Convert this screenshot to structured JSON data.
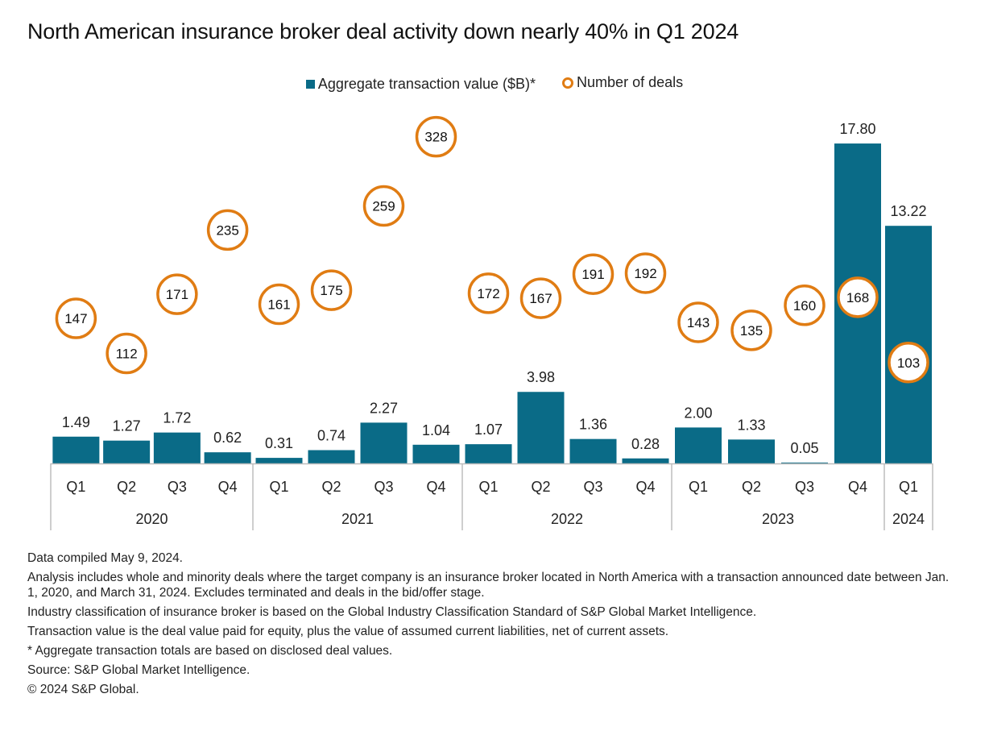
{
  "chart_data": {
    "type": "bar",
    "title": "North American insurance broker deal activity down nearly 40% in Q1 2024",
    "xlabel": "",
    "ylabel": "",
    "legend": {
      "placement": "top-center",
      "entries": [
        {
          "label": "Aggregate transaction value ($B)*",
          "marker": "square",
          "color": "#0a6b87"
        },
        {
          "label": "Number of deals",
          "marker": "circle",
          "color": "#e07c13"
        }
      ]
    },
    "categories": [
      "Q1",
      "Q2",
      "Q3",
      "Q4",
      "Q1",
      "Q2",
      "Q3",
      "Q4",
      "Q1",
      "Q2",
      "Q3",
      "Q4",
      "Q1",
      "Q2",
      "Q3",
      "Q4",
      "Q1"
    ],
    "groups": [
      {
        "label": "2020",
        "count": 4
      },
      {
        "label": "2021",
        "count": 4
      },
      {
        "label": "2022",
        "count": 4
      },
      {
        "label": "2023",
        "count": 4
      },
      {
        "label": "2024",
        "count": 1
      }
    ],
    "series": [
      {
        "name": "Aggregate transaction value ($B)*",
        "type": "bar",
        "color": "#0a6b87",
        "values": [
          1.49,
          1.27,
          1.72,
          0.62,
          0.31,
          0.74,
          2.27,
          1.04,
          1.07,
          3.98,
          1.36,
          0.28,
          2.0,
          1.33,
          0.05,
          17.8,
          13.22
        ],
        "labels": [
          "1.49",
          "1.27",
          "1.72",
          "0.62",
          "0.31",
          "0.74",
          "2.27",
          "1.04",
          "1.07",
          "3.98",
          "1.36",
          "0.28",
          "2.00",
          "1.33",
          "0.05",
          "17.80",
          "13.22"
        ]
      },
      {
        "name": "Number of deals",
        "type": "scatter",
        "color": "#e07c13",
        "values": [
          147,
          112,
          171,
          235,
          161,
          175,
          259,
          328,
          172,
          167,
          191,
          192,
          143,
          135,
          160,
          168,
          103
        ]
      }
    ],
    "ylim_bar": [
      0,
      18
    ],
    "ylim_deals": [
      0,
      340
    ],
    "grid": false
  },
  "colors": {
    "bar": "#0a6b87",
    "circle": "#e07c13",
    "axis": "#bdbdbd"
  },
  "notes": [
    "Data compiled May 9, 2024.",
    "Analysis includes whole and minority deals where the target company is an insurance broker located in North America with a transaction announced date between Jan. 1, 2020, and March 31, 2024. Excludes terminated and deals in the bid/offer stage.",
    "Industry classification of insurance broker is based on the Global Industry Classification Standard of S&P Global Market Intelligence.",
    "Transaction value is the deal value paid for equity, plus the value of assumed current liabilities, net of current assets.",
    "* Aggregate transaction totals are based on disclosed deal values.",
    "Source: S&P Global Market Intelligence.",
    "© 2024 S&P Global."
  ]
}
